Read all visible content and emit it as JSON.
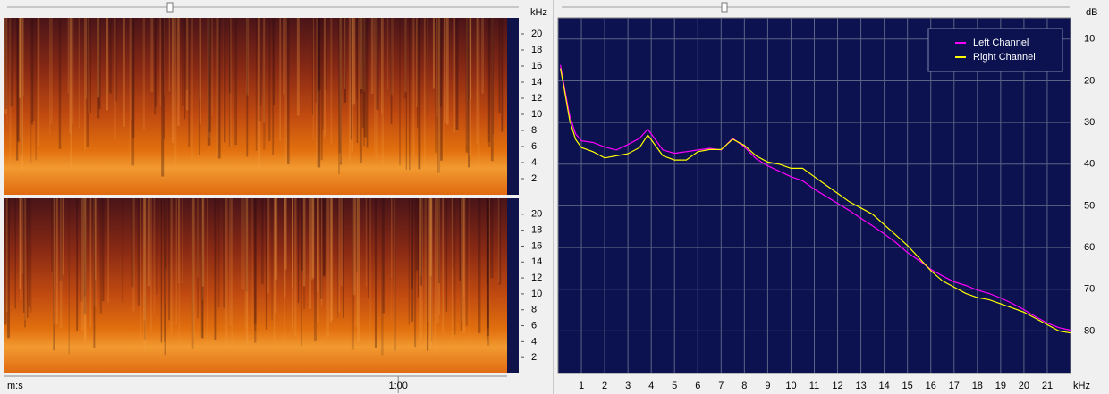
{
  "chart_data": [
    {
      "type": "spectrogram",
      "y_unit": "kHz",
      "xlabel": "m:s",
      "channels": 2,
      "xlim": [
        0,
        76.6
      ],
      "xticks": [
        {
          "value": 60,
          "label": "1:00"
        }
      ],
      "ylim": [
        0,
        22
      ],
      "yticks": [
        2,
        4,
        6,
        8,
        10,
        12,
        14,
        16,
        18,
        20
      ]
    },
    {
      "type": "line",
      "x_unit": "kHz",
      "y_unit": "dB",
      "xlim": [
        0,
        22
      ],
      "xticks": [
        1,
        2,
        3,
        4,
        5,
        6,
        7,
        8,
        9,
        10,
        11,
        12,
        13,
        14,
        15,
        16,
        17,
        18,
        19,
        20,
        21
      ],
      "ylim": [
        90.2,
        4.9
      ],
      "yticks": [
        10,
        20,
        30,
        40,
        50,
        60,
        70,
        80
      ],
      "grid": true,
      "legend": "top-right",
      "x": [
        0.1,
        0.25,
        0.5,
        0.75,
        1,
        1.5,
        2,
        2.5,
        3,
        3.5,
        3.85,
        4.5,
        5,
        5.5,
        6,
        6.5,
        7,
        7.5,
        8,
        8.5,
        9,
        9.5,
        10,
        10.5,
        11,
        11.5,
        12,
        12.5,
        13,
        13.5,
        14,
        14.5,
        15,
        15.5,
        16,
        16.5,
        17,
        17.5,
        18,
        18.5,
        19,
        19.5,
        20,
        20.5,
        21,
        21.5,
        22
      ],
      "series": [
        {
          "name": "Left Channel",
          "color": "#ff00ff",
          "values": [
            16.2,
            20.9,
            28.4,
            32.7,
            34.4,
            34.8,
            35.9,
            36.6,
            35.3,
            33.8,
            31.6,
            36.6,
            37.4,
            37.0,
            36.6,
            36.2,
            36.6,
            33.8,
            35.9,
            38.7,
            40.4,
            41.7,
            43.0,
            44.0,
            46.0,
            47.7,
            49.4,
            51.1,
            53.0,
            54.8,
            56.7,
            58.8,
            61.2,
            63.1,
            65.2,
            66.8,
            68.2,
            69.1,
            70.2,
            71.0,
            72.1,
            73.4,
            74.9,
            76.6,
            78.1,
            79.2,
            79.8
          ]
        },
        {
          "name": "Right Channel",
          "color": "#ffff00",
          "values": [
            17.0,
            21.5,
            29.5,
            34.0,
            36.0,
            37.0,
            38.5,
            38.0,
            37.5,
            36.0,
            33.0,
            38.0,
            39.0,
            39.0,
            37.0,
            36.5,
            36.5,
            34.0,
            35.5,
            38.0,
            39.5,
            40.0,
            41.0,
            41.0,
            43.0,
            45.0,
            47.0,
            49.0,
            50.5,
            52.0,
            54.5,
            57.0,
            59.5,
            62.5,
            65.5,
            68.0,
            69.5,
            71.0,
            72.0,
            72.5,
            73.5,
            74.5,
            75.5,
            77.0,
            78.5,
            80.0,
            80.5
          ]
        }
      ]
    }
  ]
}
